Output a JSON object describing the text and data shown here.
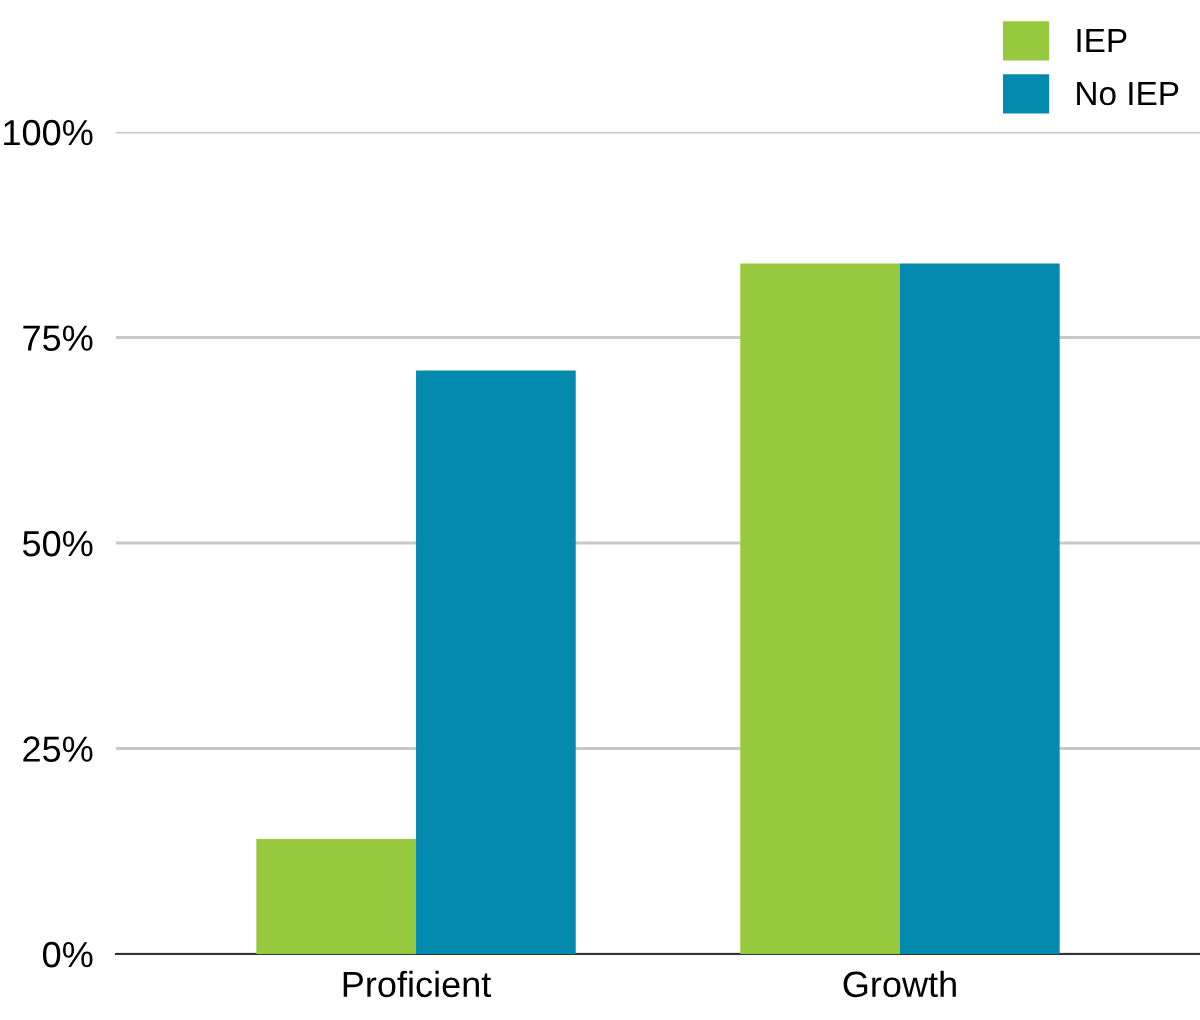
{
  "chart_data": {
    "type": "bar",
    "categories": [
      "Proficient",
      "Growth"
    ],
    "series": [
      {
        "name": "IEP",
        "color": "#97c93f",
        "values": [
          14,
          84
        ]
      },
      {
        "name": "No IEP",
        "color": "#038aae",
        "values": [
          71,
          84
        ]
      }
    ],
    "ylim": [
      0,
      100
    ],
    "yticks": [
      {
        "value": 0,
        "label": "0%"
      },
      {
        "value": 25,
        "label": "25%"
      },
      {
        "value": 50,
        "label": "50%"
      },
      {
        "value": 75,
        "label": "75%"
      },
      {
        "value": 100,
        "label": "100%"
      }
    ],
    "grid": "y",
    "legend": "top right"
  }
}
